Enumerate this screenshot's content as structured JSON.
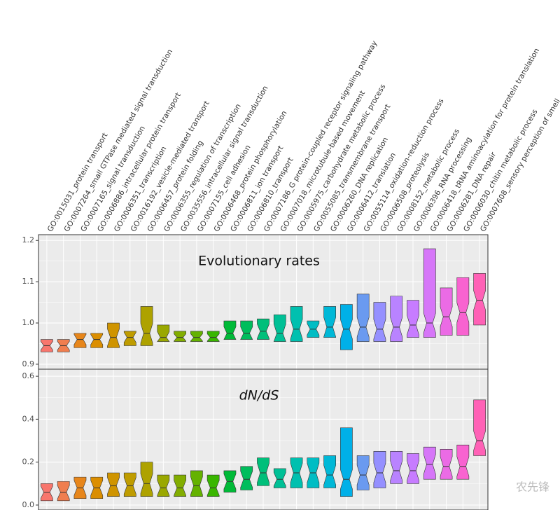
{
  "chart_data": [
    {
      "type": "boxplot",
      "title": "Evolutionary rates",
      "categories": [
        "GO:0015031_protein transport",
        "GO:0007264_small GTPase mediated signal transduction",
        "GO:0007165_signal transduction",
        "GO:0006886_intracellular protein transport",
        "GO:0006351_transcription",
        "GO:0016192_vesicle-mediated transport",
        "GO:0006457_protein folding",
        "GO:0006355_regulation of transcription",
        "GO:0035556_intracellular signal transduction",
        "GO:0007155_cell adhesion",
        "GO:0006468_protein phosphorylation",
        "GO:0006811_ion transport",
        "GO:0006810_transport",
        "GO:0007186_G protein-coupled receptor signaling pathway",
        "GO:0007018_microtubule-based movement",
        "GO:0005975_carbohydrate metabolic process",
        "GO:0055085_transmembrane transport",
        "GO:0006260_DNA replication",
        "GO:0006412_translation",
        "GO:0055114_oxidation-reduction process",
        "GO:0006508_proteolysis",
        "GO:0008152_metabolic process",
        "GO:0006396_RNA processing",
        "GO:0006418_tRNA aminoacylation for protein translation",
        "GO:0006281_DNA repair",
        "GO:0006030_chitin metabolic process",
        "GO:0007608_sensory perception of smell"
      ],
      "colors": [
        "#F8766D",
        "#F07E4F",
        "#E7861B",
        "#DB8E00",
        "#CF9400",
        "#BF9C00",
        "#AEA200",
        "#9AA800",
        "#82AD00",
        "#64B200",
        "#39B600",
        "#00BA38",
        "#00BD5C",
        "#00BF7A",
        "#00C096",
        "#00C0AF",
        "#00BDC4",
        "#00B8D7",
        "#00B0E8",
        "#6A9AF0",
        "#9590FF",
        "#B983FF",
        "#C77CFF",
        "#D676F8",
        "#EB6BE5",
        "#F863D0",
        "#FF61B6"
      ],
      "q1": [
        0.93,
        0.93,
        0.94,
        0.94,
        0.94,
        0.945,
        0.945,
        0.955,
        0.955,
        0.955,
        0.955,
        0.96,
        0.96,
        0.96,
        0.955,
        0.955,
        0.965,
        0.965,
        0.935,
        0.955,
        0.955,
        0.955,
        0.965,
        0.965,
        0.97,
        0.97,
        0.995
      ],
      "median": [
        0.945,
        0.945,
        0.96,
        0.96,
        0.965,
        0.965,
        0.975,
        0.965,
        0.965,
        0.965,
        0.965,
        0.975,
        0.975,
        0.98,
        0.975,
        0.985,
        0.985,
        0.99,
        0.985,
        0.99,
        0.985,
        0.99,
        0.995,
        1.0,
        1.015,
        1.025,
        1.055
      ],
      "q3": [
        0.96,
        0.96,
        0.975,
        0.975,
        1.0,
        0.98,
        1.04,
        0.995,
        0.98,
        0.98,
        0.98,
        1.005,
        1.005,
        1.01,
        1.02,
        1.04,
        1.005,
        1.04,
        1.045,
        1.07,
        1.05,
        1.065,
        1.055,
        1.18,
        1.085,
        1.11,
        1.12
      ],
      "ylim": [
        0.888,
        1.214
      ],
      "yticks": [
        0.9,
        {
          "value": 1,
          "label": "1.0"
        },
        1.1,
        1.2
      ],
      "grid": true
    },
    {
      "type": "boxplot",
      "title": "dN/dS",
      "q1": [
        0.02,
        0.02,
        0.03,
        0.03,
        0.04,
        0.04,
        0.04,
        0.04,
        0.04,
        0.04,
        0.04,
        0.06,
        0.07,
        0.09,
        0.08,
        0.08,
        0.08,
        0.08,
        0.04,
        0.07,
        0.08,
        0.1,
        0.1,
        0.12,
        0.12,
        0.12,
        0.23
      ],
      "median": [
        0.06,
        0.06,
        0.08,
        0.08,
        0.09,
        0.09,
        0.1,
        0.08,
        0.08,
        0.09,
        0.08,
        0.11,
        0.12,
        0.15,
        0.12,
        0.15,
        0.15,
        0.14,
        0.12,
        0.14,
        0.15,
        0.16,
        0.16,
        0.19,
        0.18,
        0.18,
        0.3
      ],
      "q3": [
        0.1,
        0.11,
        0.13,
        0.13,
        0.15,
        0.15,
        0.2,
        0.14,
        0.14,
        0.16,
        0.14,
        0.16,
        0.18,
        0.22,
        0.17,
        0.22,
        0.22,
        0.23,
        0.36,
        0.23,
        0.25,
        0.25,
        0.24,
        0.27,
        0.26,
        0.28,
        0.49
      ],
      "ylim": [
        -0.023,
        0.633
      ],
      "yticks": [
        {
          "value": 0,
          "label": "0.0"
        },
        0.2,
        0.4,
        0.6
      ],
      "grid": true
    }
  ],
  "watermark": "农先锋"
}
